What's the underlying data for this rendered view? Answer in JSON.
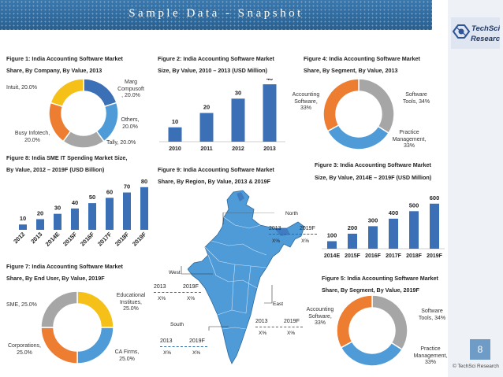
{
  "header": {
    "title": "Sample Data - Snapshot"
  },
  "logo": {
    "line1": "TechSci",
    "line2": "Research"
  },
  "page_number": "8",
  "copyright": "© TechSci Research",
  "colors": {
    "blue": "#3b6fb6",
    "lightblue": "#4f9bd8",
    "gray": "#a6a6a6",
    "orange": "#ed7d31",
    "yellow": "#f5c018",
    "header": "#2f6a9e"
  },
  "fig1": {
    "title1": "Figure 1: India Accounting Software Market",
    "title2": "Share, By Company, By Value, 2013",
    "labels": {
      "intuit": "Intuit, 20.0%",
      "marg": "Marg\nCompusoft\n, 20.0%",
      "others": "Others,\n20.0%",
      "tally": "Tally, 20.0%",
      "busy": "Busy Infotech,\n20.0%"
    }
  },
  "fig2": {
    "title1": "Figure 2: India Accounting Software Market",
    "title2": "Size, By Value, 2010 – 2013 (USD Million)"
  },
  "fig3": {
    "title1": "Figure 3: India Accounting Software Market",
    "title2": "Size, By Value, 2014E – 2019F (USD Million)"
  },
  "fig4": {
    "title1": "Figure 4: India Accounting Software Market",
    "title2": "Share, By Segment, By Value, 2013",
    "labels": {
      "accounting": "Accounting\nSoftware,\n33%",
      "software_tools": "Software\nTools, 34%",
      "practice": "Practice\nManagement,\n33%"
    }
  },
  "fig5": {
    "title1": "Figure 5: India Accounting Software Market",
    "title2": "Share, By Segment, By Value, 2019F",
    "labels": {
      "accounting": "Accounting\nSoftware,\n33%",
      "software_tools": "Software\nTools, 34%",
      "practice": "Practice\nManagement,\n33%"
    }
  },
  "fig7": {
    "title1": "Figure 7: India Accounting Software Market",
    "title2": "Share, By End User, By Value, 2019F",
    "labels": {
      "sme": "SME, 25.0%",
      "edu": "Educational\nInstitues,\n25.0%",
      "corp": "Corporations,\n25.0%",
      "ca": "CA Firms,\n25.0%"
    }
  },
  "fig8": {
    "title1": "Figure 8: India SME IT Spending Market Size,",
    "title2": "By Value, 2012 – 2019F (USD Billion)"
  },
  "fig9": {
    "title1": "Figure 9: India Accounting Software Market",
    "title2": "Share, By Region, By Value, 2013 & 2019F",
    "regions": {
      "north": {
        "name": "North",
        "y1": "2013",
        "y2": "2019F",
        "v1": "X%",
        "v2": "X%"
      },
      "west": {
        "name": "West",
        "y1": "2013",
        "y2": "2019F",
        "v1": "X%",
        "v2": "X%"
      },
      "east": {
        "name": "East",
        "y1": "2013",
        "y2": "2019F",
        "v1": "X%",
        "v2": "X%"
      },
      "south": {
        "name": "South",
        "y1": "2013",
        "y2": "2019F",
        "v1": "X%",
        "v2": "X%"
      }
    }
  },
  "chart_data": [
    {
      "id": "fig1",
      "type": "pie",
      "title": "India Accounting Software Market Share, By Company, By Value, 2013",
      "categories": [
        "Marg Compusoft",
        "Others",
        "Tally",
        "Busy Infotech",
        "Intuit"
      ],
      "values": [
        20,
        20,
        20,
        20,
        20
      ],
      "colors": [
        "#3b6fb6",
        "#4f9bd8",
        "#a6a6a6",
        "#ed7d31",
        "#f5c018"
      ]
    },
    {
      "id": "fig2",
      "type": "bar",
      "title": "India Accounting Software Market Size, By Value, 2010 – 2013 (USD Million)",
      "categories": [
        "2010",
        "2011",
        "2012",
        "2013"
      ],
      "values": [
        10,
        20,
        30,
        40
      ],
      "ylim": [
        0,
        45
      ]
    },
    {
      "id": "fig3",
      "type": "bar",
      "title": "India Accounting Software Market Size, By Value, 2014E – 2019F (USD Million)",
      "categories": [
        "2014E",
        "2015F",
        "2016F",
        "2017F",
        "2018F",
        "2019F"
      ],
      "values": [
        100,
        200,
        300,
        400,
        500,
        600
      ],
      "ylim": [
        0,
        650
      ]
    },
    {
      "id": "fig4",
      "type": "pie",
      "title": "India Accounting Software Market Share, By Segment, By Value, 2013",
      "categories": [
        "Software Tools",
        "Practice Management",
        "Accounting Software"
      ],
      "values": [
        34,
        33,
        33
      ],
      "colors": [
        "#a6a6a6",
        "#4f9bd8",
        "#ed7d31"
      ]
    },
    {
      "id": "fig5",
      "type": "pie",
      "title": "India Accounting Software Market Share, By Segment, By Value, 2019F",
      "categories": [
        "Software Tools",
        "Practice Management",
        "Accounting Software"
      ],
      "values": [
        34,
        33,
        33
      ],
      "colors": [
        "#a6a6a6",
        "#4f9bd8",
        "#ed7d31"
      ]
    },
    {
      "id": "fig7",
      "type": "pie",
      "title": "India Accounting Software Market Share, By End User, By Value, 2019F",
      "categories": [
        "Educational Institues",
        "CA Firms",
        "Corporations",
        "SME"
      ],
      "values": [
        25,
        25,
        25,
        25
      ],
      "colors": [
        "#f5c018",
        "#4f9bd8",
        "#ed7d31",
        "#a6a6a6"
      ]
    },
    {
      "id": "fig8",
      "type": "bar",
      "title": "India SME IT Spending Market Size, By Value, 2012 – 2019F (USD Billion)",
      "categories": [
        "2012",
        "2013",
        "2014E",
        "2015F",
        "2016F",
        "2017F",
        "2018F",
        "2019F"
      ],
      "values": [
        10,
        20,
        30,
        40,
        50,
        60,
        70,
        80
      ],
      "ylim": [
        0,
        90
      ]
    }
  ]
}
